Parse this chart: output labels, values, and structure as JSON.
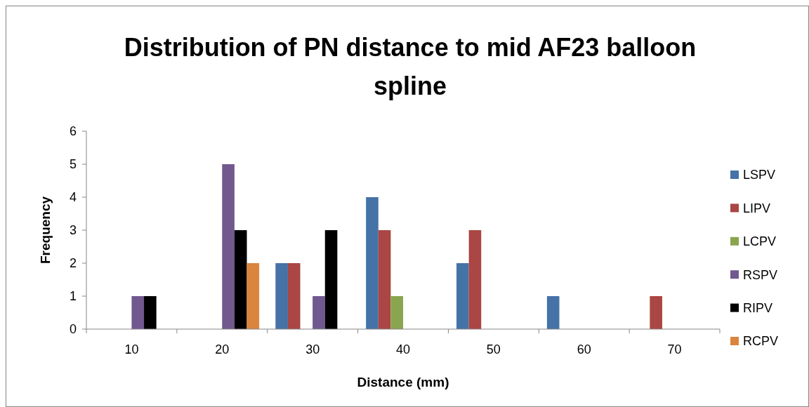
{
  "chart_data": {
    "type": "bar",
    "title": "Distribution of PN distance to mid AF23 balloon spline",
    "xlabel": "Distance (mm)",
    "ylabel": "Frequency",
    "categories": [
      "10",
      "20",
      "30",
      "40",
      "50",
      "60",
      "70"
    ],
    "series": [
      {
        "name": "LSPV",
        "color": "#4572a7",
        "values": [
          0,
          0,
          2,
          4,
          2,
          1,
          0
        ]
      },
      {
        "name": "LIPV",
        "color": "#aa4643",
        "values": [
          0,
          0,
          2,
          3,
          3,
          0,
          1
        ]
      },
      {
        "name": "LCPV",
        "color": "#89a54e",
        "values": [
          0,
          0,
          0,
          1,
          0,
          0,
          0
        ]
      },
      {
        "name": "RSPV",
        "color": "#71588f",
        "values": [
          1,
          5,
          1,
          0,
          0,
          0,
          0
        ]
      },
      {
        "name": "RIPV",
        "color": "#000000",
        "values": [
          1,
          3,
          3,
          0,
          0,
          0,
          0
        ]
      },
      {
        "name": "RCPV",
        "color": "#db843d",
        "values": [
          0,
          2,
          0,
          0,
          0,
          0,
          0
        ]
      }
    ],
    "ylim": [
      0,
      6
    ],
    "yticks": [
      0,
      1,
      2,
      3,
      4,
      5,
      6
    ],
    "grid": false,
    "legend": "right"
  }
}
